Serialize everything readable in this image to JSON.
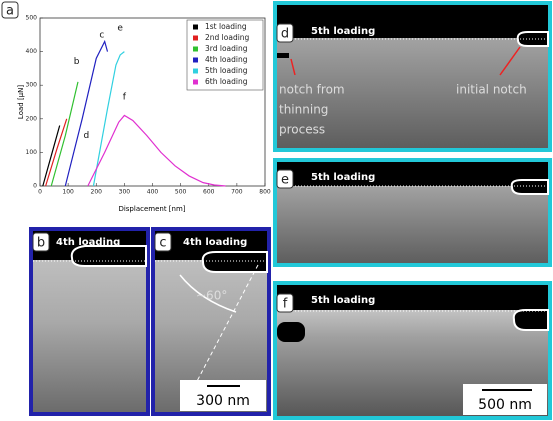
{
  "chart_data": {
    "type": "line",
    "x_label": "Displacement [nm]",
    "y_label": "Load [μN]",
    "xlim": [
      0,
      800
    ],
    "xticks": [
      0,
      100,
      200,
      300,
      400,
      500,
      600,
      700,
      800
    ],
    "ylim": [
      0,
      500
    ],
    "yticks": [
      0,
      100,
      200,
      300,
      400,
      500
    ],
    "legend": "upper right",
    "series": [
      {
        "name": "1st loading",
        "color": "#000000",
        "x": [
          10,
          30,
          50,
          70
        ],
        "values": [
          0,
          60,
          120,
          180
        ]
      },
      {
        "name": "2nd loading",
        "color": "#e02020",
        "x": [
          20,
          60,
          95
        ],
        "values": [
          0,
          110,
          200
        ]
      },
      {
        "name": "3rd loading",
        "color": "#30c030",
        "x": [
          40,
          90,
          135
        ],
        "values": [
          0,
          150,
          310
        ]
      },
      {
        "name": "4th loading",
        "color": "#2020c0",
        "x": [
          90,
          150,
          200,
          230,
          240
        ],
        "values": [
          0,
          200,
          380,
          430,
          400
        ]
      },
      {
        "name": "5th loading",
        "color": "#30d0e0",
        "x": [
          190,
          240,
          270,
          285,
          300
        ],
        "values": [
          0,
          230,
          360,
          390,
          400
        ]
      },
      {
        "name": "6th loading",
        "color": "#e030d0",
        "x": [
          170,
          230,
          280,
          300,
          330,
          380,
          430,
          480,
          530,
          580,
          620,
          660
        ],
        "values": [
          0,
          100,
          190,
          210,
          195,
          150,
          100,
          60,
          30,
          10,
          3,
          0
        ]
      }
    ],
    "annotations": [
      {
        "text": "b",
        "x": 130,
        "y": 370
      },
      {
        "text": "c",
        "x": 220,
        "y": 450
      },
      {
        "text": "e",
        "x": 285,
        "y": 470
      },
      {
        "text": "f",
        "x": 300,
        "y": 265
      },
      {
        "text": "d",
        "x": 165,
        "y": 150
      }
    ]
  },
  "panels": [
    {
      "label": "a"
    },
    {
      "label": "b",
      "loading": "4th loading"
    },
    {
      "label": "c",
      "loading": "4th loading",
      "angle": "~60°",
      "scalebar": "300 nm"
    },
    {
      "label": "d",
      "loading": "5th loading",
      "annotations": [
        [
          "notch from",
          "thinning",
          "process"
        ],
        "initial notch"
      ]
    },
    {
      "label": "e",
      "loading": "5th loading"
    },
    {
      "label": "f",
      "loading": "5th loading",
      "scalebar": "500 nm"
    }
  ]
}
